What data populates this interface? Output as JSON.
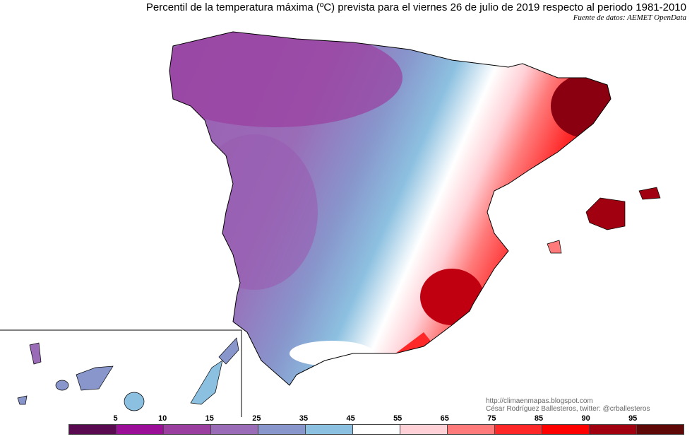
{
  "title": "Percentil de la temperatura máxima (ºC) prevista para el viernes 26 de julio de 2019 respecto al periodo 1981-2010",
  "source": "Fuente de datos: AEMET OpenData",
  "credits": {
    "url": "http://climaenmapas.blogspot.com",
    "author": "César Rodríguez Ballesteros, twitter: @crballesteros"
  },
  "legend": {
    "ticks": [
      "5",
      "10",
      "15",
      "25",
      "35",
      "45",
      "55",
      "65",
      "75",
      "85",
      "90",
      "95"
    ],
    "colors": [
      "#5a0a50",
      "#9a0e98",
      "#9a3ea0",
      "#9a6cb8",
      "#8896cc",
      "#8cc0e0",
      "#ffffff",
      "#ffd0d6",
      "#ff7a7a",
      "#ff2828",
      "#ff0000",
      "#a00010",
      "#5e0808"
    ]
  }
}
